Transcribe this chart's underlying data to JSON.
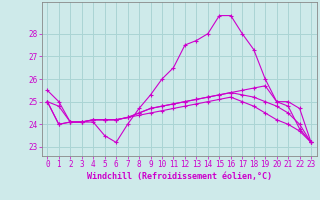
{
  "xlabel": "Windchill (Refroidissement éolien,°C)",
  "background_color": "#ceeaea",
  "grid_color": "#aad4d4",
  "line_color": "#cc00cc",
  "x_values": [
    0,
    1,
    2,
    3,
    4,
    5,
    6,
    7,
    8,
    9,
    10,
    11,
    12,
    13,
    14,
    15,
    16,
    17,
    18,
    19,
    20,
    21,
    22,
    23
  ],
  "series": [
    [
      25.5,
      25.0,
      24.1,
      24.1,
      24.1,
      23.5,
      23.2,
      24.0,
      24.7,
      25.3,
      26.0,
      26.5,
      27.5,
      27.7,
      28.0,
      28.8,
      28.8,
      28.0,
      27.3,
      26.0,
      25.0,
      24.8,
      23.8,
      23.2
    ],
    [
      25.0,
      24.8,
      24.1,
      24.1,
      24.2,
      24.2,
      24.2,
      24.3,
      24.5,
      24.7,
      24.8,
      24.9,
      25.0,
      25.1,
      25.2,
      25.3,
      25.4,
      25.5,
      25.6,
      25.7,
      25.0,
      25.0,
      24.7,
      23.2
    ],
    [
      25.0,
      24.0,
      24.1,
      24.1,
      24.2,
      24.2,
      24.2,
      24.3,
      24.5,
      24.7,
      24.8,
      24.9,
      25.0,
      25.1,
      25.2,
      25.3,
      25.4,
      25.3,
      25.2,
      25.0,
      24.8,
      24.5,
      24.0,
      23.2
    ],
    [
      25.0,
      24.0,
      24.1,
      24.1,
      24.2,
      24.2,
      24.2,
      24.3,
      24.4,
      24.5,
      24.6,
      24.7,
      24.8,
      24.9,
      25.0,
      25.1,
      25.2,
      25.0,
      24.8,
      24.5,
      24.2,
      24.0,
      23.7,
      23.2
    ]
  ],
  "ylim": [
    22.6,
    29.4
  ],
  "yticks": [
    23,
    24,
    25,
    26,
    27,
    28
  ],
  "xlim": [
    -0.5,
    23.5
  ],
  "xticks": [
    0,
    1,
    2,
    3,
    4,
    5,
    6,
    7,
    8,
    9,
    10,
    11,
    12,
    13,
    14,
    15,
    16,
    17,
    18,
    19,
    20,
    21,
    22,
    23
  ],
  "tick_fontsize": 5.5,
  "label_fontsize": 6.0
}
